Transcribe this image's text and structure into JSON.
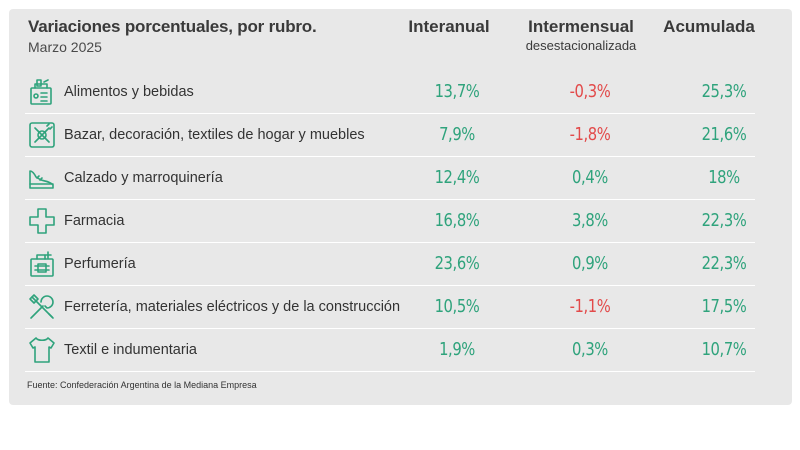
{
  "title": "Variaciones porcentuales, por rubro.",
  "subtitle": "Marzo 2025",
  "columns": {
    "interanual": "Interanual",
    "intermensual": "Intermensual",
    "intermensual_sub": "desestacionalizada",
    "acumulada": "Acumulada"
  },
  "source": "Fuente: Confederación Argentina de la Mediana Empresa",
  "colors": {
    "positive": "#2fa37c",
    "negative": "#e24a4a",
    "icon": "#2fa37c",
    "card": "#e8e8e8"
  },
  "chart_data": {
    "type": "table",
    "title": "Variaciones porcentuales, por rubro.",
    "subtitle": "Marzo 2025",
    "columns": [
      "Interanual",
      "Intermensual desestacionalizada",
      "Acumulada"
    ],
    "rows": [
      {
        "icon": "grocery-bag-icon",
        "label": "Alimentos y bebidas",
        "interanual": "13,7%",
        "intermensual": "-0,3%",
        "acumulada": "25,3%"
      },
      {
        "icon": "home-decor-icon",
        "label": "Bazar, decoración, textiles de hogar y muebles",
        "interanual": "7,9%",
        "intermensual": "-1,8%",
        "acumulada": "21,6%"
      },
      {
        "icon": "shoe-icon",
        "label": "Calzado y marroquinería",
        "interanual": "12,4%",
        "intermensual": "0,4%",
        "acumulada": "18%"
      },
      {
        "icon": "pharmacy-cross-icon",
        "label": "Farmacia",
        "interanual": "16,8%",
        "intermensual": "3,8%",
        "acumulada": "22,3%"
      },
      {
        "icon": "perfume-icon",
        "label": "Perfumería",
        "interanual": "23,6%",
        "intermensual": "0,9%",
        "acumulada": "22,3%"
      },
      {
        "icon": "tools-icon",
        "label": "Ferretería, materiales eléctricos y de la construcción",
        "interanual": "10,5%",
        "intermensual": "-1,1%",
        "acumulada": "17,5%"
      },
      {
        "icon": "shirt-icon",
        "label": "Textil e indumentaria",
        "interanual": "1,9%",
        "intermensual": "0,3%",
        "acumulada": "10,7%"
      }
    ]
  }
}
